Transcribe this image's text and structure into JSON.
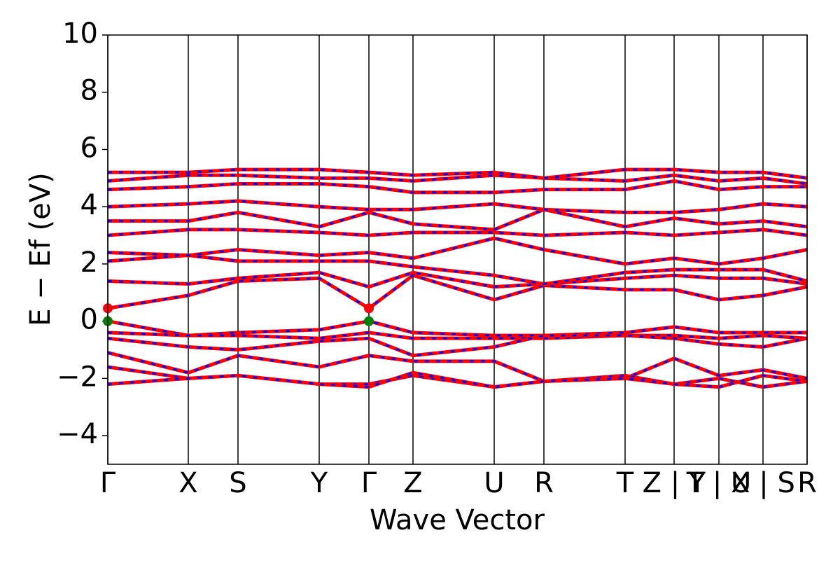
{
  "chart_data": {
    "type": "band",
    "ylabel": "E − Ef (eV)",
    "xlabel": "Wave Vector",
    "ylim": [
      -5,
      10
    ],
    "yticks": [
      {
        "value": -4,
        "label": "−4"
      },
      {
        "value": -2,
        "label": "−2"
      },
      0,
      2,
      4,
      6,
      8,
      10
    ],
    "xlim": [
      0,
      9.99
    ],
    "xticks": [
      {
        "value": 0,
        "label": "Γ"
      },
      {
        "value": 1.15,
        "label": "X"
      },
      {
        "value": 1.86,
        "label": "S"
      },
      {
        "value": 3.02,
        "label": "Y"
      },
      {
        "value": 3.73,
        "label": "Γ"
      },
      {
        "value": 4.36,
        "label": "Z"
      },
      {
        "value": 5.52,
        "label": "U"
      },
      {
        "value": 6.23,
        "label": "R"
      },
      {
        "value": 7.39,
        "label": "T"
      },
      {
        "value": 8.09,
        "label": "Z | Y"
      },
      {
        "value": 8.73,
        "label": "T | U"
      },
      {
        "value": 9.36,
        "label": "X | S"
      },
      {
        "value": 9.99,
        "label": "R"
      }
    ],
    "line_color": "#ff0000",
    "dash_color": "#0000ff",
    "x": [
      0,
      1.15,
      1.86,
      3.02,
      3.73,
      4.36,
      5.52,
      6.23,
      7.39,
      8.09,
      8.73,
      9.36,
      9.99
    ],
    "series": [
      {
        "values": [
          0.45,
          0.9,
          1.4,
          1.5,
          0.45,
          1.6,
          0.75,
          1.25,
          1.1,
          1.1,
          0.75,
          0.9,
          1.2
        ]
      },
      {
        "values": [
          1.4,
          1.3,
          1.5,
          1.7,
          1.2,
          1.7,
          1.2,
          1.3,
          1.5,
          1.6,
          1.5,
          1.5,
          1.3
        ]
      },
      {
        "values": [
          2.1,
          2.3,
          2.1,
          2.1,
          2.1,
          1.9,
          1.6,
          1.3,
          1.7,
          1.8,
          1.8,
          1.8,
          1.4
        ]
      },
      {
        "values": [
          2.4,
          2.3,
          2.5,
          2.3,
          2.4,
          2.2,
          2.9,
          2.5,
          2.0,
          2.2,
          2.0,
          2.2,
          2.5
        ]
      },
      {
        "values": [
          3.0,
          3.2,
          3.2,
          3.1,
          3.0,
          3.1,
          3.1,
          3.0,
          3.1,
          3.0,
          3.1,
          3.2,
          3.0
        ]
      },
      {
        "values": [
          3.5,
          3.5,
          3.8,
          3.3,
          3.8,
          3.4,
          3.2,
          3.9,
          3.3,
          3.6,
          3.4,
          3.5,
          3.3
        ]
      },
      {
        "values": [
          4.0,
          4.1,
          4.2,
          4.0,
          3.9,
          3.9,
          4.1,
          3.9,
          3.8,
          3.8,
          3.9,
          4.1,
          4.0
        ]
      },
      {
        "values": [
          4.6,
          4.7,
          4.8,
          4.8,
          4.7,
          4.5,
          4.5,
          4.6,
          4.6,
          4.9,
          4.6,
          4.7,
          4.7
        ]
      },
      {
        "values": [
          4.9,
          5.1,
          5.1,
          5.0,
          5.0,
          4.9,
          5.1,
          5.0,
          4.9,
          5.1,
          4.9,
          5.0,
          4.8
        ]
      },
      {
        "values": [
          5.2,
          5.2,
          5.3,
          5.3,
          5.2,
          5.1,
          5.2,
          5.0,
          5.3,
          5.3,
          5.2,
          5.2,
          5.0
        ]
      },
      {
        "values": [
          0,
          -0.5,
          -0.4,
          -0.3,
          0,
          -0.4,
          -0.5,
          -0.5,
          -0.4,
          -0.2,
          -0.4,
          -0.4,
          -0.4
        ]
      },
      {
        "values": [
          -0.4,
          -0.5,
          -0.5,
          -0.6,
          -0.4,
          -0.6,
          -0.6,
          -0.6,
          -0.5,
          -0.5,
          -0.6,
          -0.5,
          -0.6
        ]
      },
      {
        "values": [
          -0.6,
          -0.9,
          -1.0,
          -0.7,
          -0.6,
          -1.2,
          -0.9,
          -0.5,
          -0.5,
          -0.6,
          -0.8,
          -0.9,
          -0.6
        ]
      },
      {
        "values": [
          -1.1,
          -1.8,
          -1.2,
          -1.6,
          -1.2,
          -1.4,
          -1.4,
          -2.1,
          -2.0,
          -1.3,
          -1.9,
          -1.7,
          -2.0
        ]
      },
      {
        "values": [
          -1.6,
          -2.0,
          -1.9,
          -2.2,
          -2.2,
          -1.9,
          -2.3,
          -2.1,
          -1.9,
          -2.2,
          -2.0,
          -2.3,
          -2.1
        ]
      },
      {
        "values": [
          -2.2,
          -2.0,
          -1.9,
          -2.2,
          -2.3,
          -1.8,
          -2.3,
          -2.1,
          -2.0,
          -2.2,
          -2.3,
          -1.9,
          -2.1
        ]
      }
    ],
    "markers": [
      {
        "x": 0,
        "y": 0.45,
        "color": "#ff0000"
      },
      {
        "x": 3.73,
        "y": 0.45,
        "color": "#ff0000"
      },
      {
        "x": 0,
        "y": 0,
        "color": "#008000"
      },
      {
        "x": 3.73,
        "y": 0,
        "color": "#008000"
      }
    ]
  }
}
